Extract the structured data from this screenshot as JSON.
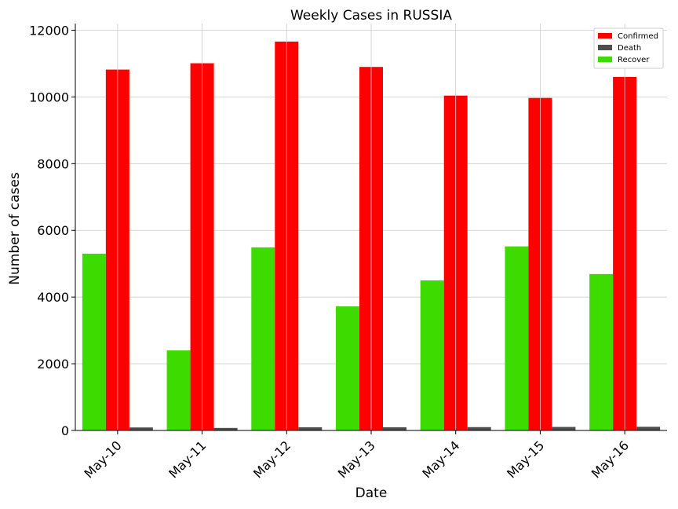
{
  "chart_data": {
    "type": "bar",
    "title": "Weekly Cases in RUSSIA",
    "xlabel": "Date",
    "ylabel": "Number of cases",
    "categories": [
      "May-10",
      "May-11",
      "May-12",
      "May-13",
      "May-14",
      "May-15",
      "May-16"
    ],
    "series": [
      {
        "name": "Recover",
        "color": "#3ddb00",
        "values": [
          5300,
          2400,
          5490,
          3720,
          4500,
          5520,
          4690
        ]
      },
      {
        "name": "Confirmed",
        "color": "#ff0000",
        "values": [
          10820,
          11010,
          11660,
          10900,
          10040,
          9970,
          10600
        ]
      },
      {
        "name": "Death",
        "color": "#4d4d4d",
        "values": [
          90,
          75,
          95,
          95,
          100,
          105,
          110
        ]
      }
    ],
    "legend_order": [
      "Confirmed",
      "Death",
      "Recover"
    ],
    "ylim": [
      0,
      12200
    ],
    "yticks": [
      0,
      2000,
      4000,
      6000,
      8000,
      10000,
      12000
    ],
    "grid": true,
    "legend_position": "top-right"
  }
}
